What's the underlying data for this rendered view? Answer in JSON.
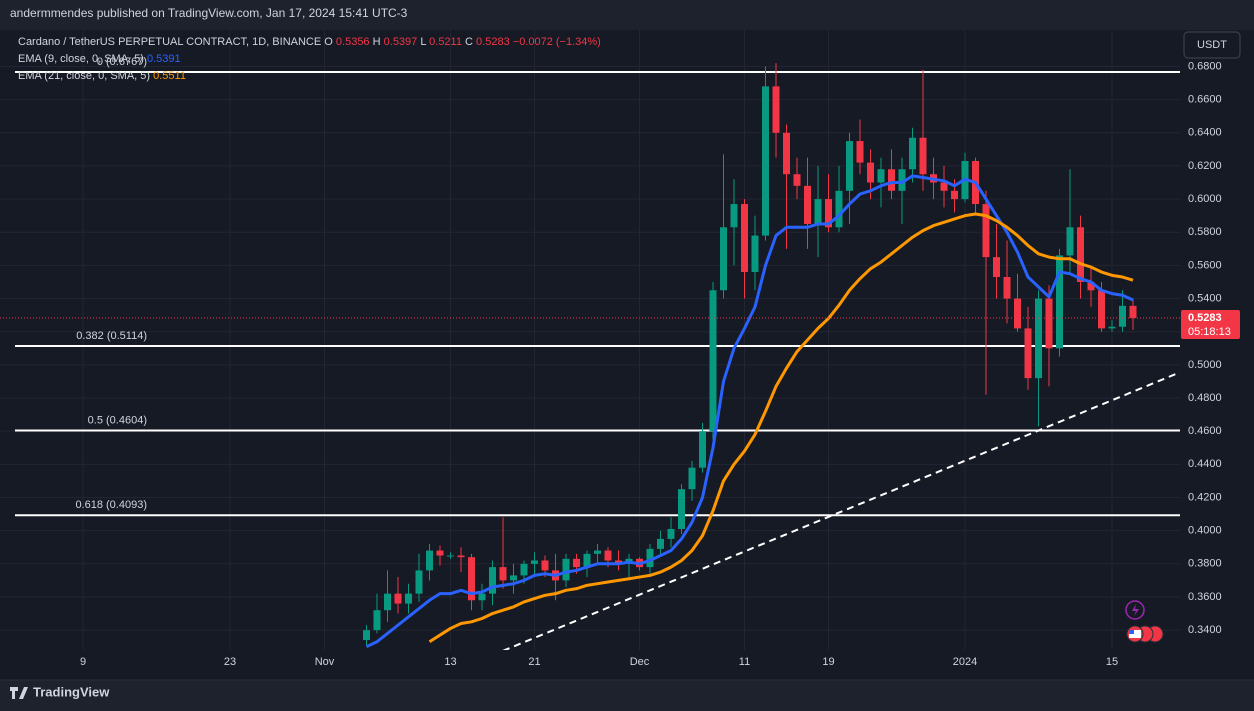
{
  "header": {
    "publisher": "andermmendes published on TradingView.com, Jan 17, 2024 15:41 UTC-3",
    "currency_button": "USDT",
    "countdown": "05:18:13",
    "brand": "TradingView"
  },
  "chart_data": {
    "type": "candlestick",
    "title": "Cardano / TetherUS PERPETUAL CONTRACT, 1D, BINANCE",
    "ohlc_labels": [
      "O",
      "H",
      "L",
      "C"
    ],
    "change": "−0.0072 (−1.34%)",
    "up_color": "#089981",
    "down_color": "#f23645",
    "candles": {
      "x": [
        "2023-11-05",
        "2023-11-06",
        "2023-11-07",
        "2023-11-08",
        "2023-11-09",
        "2023-11-10",
        "2023-11-11",
        "2023-11-12",
        "2023-11-13",
        "2023-11-14",
        "2023-11-15",
        "2023-11-16",
        "2023-11-17",
        "2023-11-18",
        "2023-11-19",
        "2023-11-20",
        "2023-11-21",
        "2023-11-22",
        "2023-11-23",
        "2023-11-24",
        "2023-11-25",
        "2023-11-26",
        "2023-11-27",
        "2023-11-28",
        "2023-11-29",
        "2023-11-30",
        "2023-12-01",
        "2023-12-02",
        "2023-12-03",
        "2023-12-04",
        "2023-12-05",
        "2023-12-06",
        "2023-12-07",
        "2023-12-08",
        "2023-12-09",
        "2023-12-10",
        "2023-12-11",
        "2023-12-12",
        "2023-12-13",
        "2023-12-14",
        "2023-12-15",
        "2023-12-16",
        "2023-12-17",
        "2023-12-18",
        "2023-12-19",
        "2023-12-20",
        "2023-12-21",
        "2023-12-22",
        "2023-12-23",
        "2023-12-24",
        "2023-12-25",
        "2023-12-26",
        "2023-12-27",
        "2023-12-28",
        "2023-12-29",
        "2023-12-30",
        "2023-12-31",
        "2024-01-01",
        "2024-01-02",
        "2024-01-03",
        "2024-01-04",
        "2024-01-05",
        "2024-01-06",
        "2024-01-07",
        "2024-01-08",
        "2024-01-09",
        "2024-01-10",
        "2024-01-11",
        "2024-01-12",
        "2024-01-13",
        "2024-01-14",
        "2024-01-15",
        "2024-01-16",
        "2024-01-17"
      ],
      "open": [
        0.334,
        0.34,
        0.352,
        0.362,
        0.356,
        0.362,
        0.376,
        0.388,
        0.385,
        0.385,
        0.384,
        0.358,
        0.362,
        0.378,
        0.37,
        0.373,
        0.38,
        0.382,
        0.376,
        0.37,
        0.383,
        0.378,
        0.386,
        0.388,
        0.382,
        0.38,
        0.383,
        0.378,
        0.389,
        0.395,
        0.401,
        0.425,
        0.438,
        0.46,
        0.545,
        0.583,
        0.597,
        0.556,
        0.578,
        0.668,
        0.64,
        0.615,
        0.608,
        0.585,
        0.6,
        0.583,
        0.605,
        0.635,
        0.622,
        0.61,
        0.618,
        0.605,
        0.618,
        0.637,
        0.615,
        0.61,
        0.605,
        0.6,
        0.623,
        0.597,
        0.565,
        0.553,
        0.54,
        0.522,
        0.492,
        0.54,
        0.51,
        0.566,
        0.583,
        0.55,
        0.545,
        0.522,
        0.523,
        0.5356
      ],
      "high": [
        0.343,
        0.362,
        0.376,
        0.372,
        0.368,
        0.386,
        0.392,
        0.391,
        0.387,
        0.39,
        0.386,
        0.368,
        0.382,
        0.408,
        0.38,
        0.382,
        0.387,
        0.385,
        0.386,
        0.386,
        0.386,
        0.388,
        0.392,
        0.39,
        0.388,
        0.386,
        0.384,
        0.392,
        0.4,
        0.408,
        0.428,
        0.442,
        0.465,
        0.55,
        0.627,
        0.612,
        0.6,
        0.59,
        0.68,
        0.682,
        0.645,
        0.625,
        0.625,
        0.62,
        0.615,
        0.62,
        0.64,
        0.648,
        0.63,
        0.625,
        0.63,
        0.625,
        0.643,
        0.678,
        0.625,
        0.62,
        0.612,
        0.628,
        0.625,
        0.605,
        0.585,
        0.575,
        0.555,
        0.535,
        0.545,
        0.548,
        0.57,
        0.618,
        0.59,
        0.56,
        0.55,
        0.527,
        0.545,
        0.5397
      ],
      "low": [
        0.33,
        0.338,
        0.345,
        0.35,
        0.35,
        0.357,
        0.37,
        0.379,
        0.383,
        0.375,
        0.352,
        0.352,
        0.355,
        0.365,
        0.362,
        0.368,
        0.372,
        0.372,
        0.358,
        0.366,
        0.374,
        0.372,
        0.38,
        0.378,
        0.376,
        0.372,
        0.376,
        0.374,
        0.385,
        0.39,
        0.398,
        0.418,
        0.435,
        0.455,
        0.54,
        0.56,
        0.54,
        0.545,
        0.575,
        0.625,
        0.57,
        0.6,
        0.57,
        0.565,
        0.58,
        0.58,
        0.585,
        0.615,
        0.6,
        0.595,
        0.6,
        0.585,
        0.61,
        0.605,
        0.6,
        0.595,
        0.592,
        0.598,
        0.59,
        0.482,
        0.54,
        0.525,
        0.52,
        0.485,
        0.463,
        0.487,
        0.505,
        0.555,
        0.54,
        0.535,
        0.52,
        0.52,
        0.52,
        0.5211
      ],
      "close": [
        0.34,
        0.352,
        0.362,
        0.356,
        0.362,
        0.376,
        0.388,
        0.385,
        0.385,
        0.384,
        0.358,
        0.362,
        0.378,
        0.37,
        0.373,
        0.38,
        0.382,
        0.376,
        0.37,
        0.383,
        0.378,
        0.386,
        0.388,
        0.382,
        0.38,
        0.383,
        0.378,
        0.389,
        0.395,
        0.401,
        0.425,
        0.438,
        0.46,
        0.545,
        0.583,
        0.597,
        0.556,
        0.578,
        0.668,
        0.64,
        0.615,
        0.608,
        0.585,
        0.6,
        0.583,
        0.605,
        0.635,
        0.622,
        0.61,
        0.618,
        0.605,
        0.618,
        0.637,
        0.615,
        0.61,
        0.605,
        0.6,
        0.623,
        0.597,
        0.565,
        0.553,
        0.54,
        0.522,
        0.492,
        0.54,
        0.51,
        0.566,
        0.583,
        0.55,
        0.545,
        0.522,
        0.523,
        0.5356,
        0.5283
      ]
    },
    "series": [
      {
        "name": "EMA (9, close, 0, SMA, 5)",
        "color": "#2962ff",
        "values": [
          0.33,
          0.333,
          0.338,
          0.343,
          0.348,
          0.353,
          0.358,
          0.362,
          0.362,
          0.364,
          0.362,
          0.363,
          0.366,
          0.367,
          0.368,
          0.37,
          0.373,
          0.374,
          0.373,
          0.375,
          0.376,
          0.378,
          0.38,
          0.38,
          0.38,
          0.381,
          0.38,
          0.382,
          0.385,
          0.388,
          0.395,
          0.405,
          0.42,
          0.45,
          0.49,
          0.51,
          0.522,
          0.535,
          0.56,
          0.578,
          0.583,
          0.583,
          0.583,
          0.585,
          0.585,
          0.59,
          0.597,
          0.603,
          0.605,
          0.608,
          0.61,
          0.61,
          0.614,
          0.613,
          0.612,
          0.611,
          0.608,
          0.612,
          0.61,
          0.6,
          0.59,
          0.58,
          0.568,
          0.553,
          0.547,
          0.541,
          0.556,
          0.555,
          0.552,
          0.55,
          0.545,
          0.543,
          0.542,
          0.5391
        ]
      },
      {
        "name": "EMA (21, close, 0, SMA, 5)",
        "color": "#ff9800",
        "values": [
          null,
          null,
          null,
          null,
          null,
          null,
          0.333,
          0.337,
          0.341,
          0.344,
          0.345,
          0.347,
          0.35,
          0.352,
          0.354,
          0.357,
          0.359,
          0.361,
          0.362,
          0.364,
          0.365,
          0.367,
          0.368,
          0.369,
          0.37,
          0.371,
          0.372,
          0.373,
          0.375,
          0.378,
          0.382,
          0.388,
          0.397,
          0.412,
          0.43,
          0.44,
          0.448,
          0.458,
          0.472,
          0.487,
          0.498,
          0.508,
          0.515,
          0.522,
          0.528,
          0.536,
          0.545,
          0.552,
          0.558,
          0.562,
          0.567,
          0.572,
          0.577,
          0.581,
          0.584,
          0.586,
          0.588,
          0.59,
          0.591,
          0.59,
          0.587,
          0.583,
          0.578,
          0.572,
          0.567,
          0.565,
          0.564,
          0.564,
          0.561,
          0.559,
          0.556,
          0.554,
          0.553,
          0.5511
        ]
      }
    ],
    "fib_levels": [
      {
        "label": "0 (0.6767)",
        "value": 0.6767
      },
      {
        "label": "0.382 (0.5114)",
        "value": 0.5114
      },
      {
        "label": "0.5 (0.4604)",
        "value": 0.4604
      },
      {
        "label": "0.618 (0.4093)",
        "value": 0.4093
      }
    ],
    "fib_color": "#ffffff",
    "trendline": {
      "x": [
        "2023-11-18",
        "2024-01-08"
      ],
      "y": [
        0.3275,
        0.4604
      ],
      "color": "#ffffff"
    },
    "xlim": [
      "2023-10-01",
      "2024-01-22"
    ],
    "xticks": [
      {
        "value": "2023-10-09",
        "label": "9"
      },
      {
        "value": "2023-10-23",
        "label": "23"
      },
      {
        "value": "2023-11-01",
        "label": "Nov"
      },
      {
        "value": "2023-11-13",
        "label": "13"
      },
      {
        "value": "2023-11-21",
        "label": "21"
      },
      {
        "value": "2023-12-01",
        "label": "Dec"
      },
      {
        "value": "2023-12-11",
        "label": "11"
      },
      {
        "value": "2023-12-19",
        "label": "19"
      },
      {
        "value": "2024-01-01",
        "label": "2024"
      },
      {
        "value": "2024-01-15",
        "label": "15"
      }
    ],
    "ylim": [
      0.328,
      0.702
    ],
    "yticks": [
      {
        "value": 0.34,
        "label": "0.3400"
      },
      {
        "value": 0.36,
        "label": "0.3600"
      },
      {
        "value": 0.38,
        "label": "0.3800"
      },
      {
        "value": 0.4,
        "label": "0.4000"
      },
      {
        "value": 0.42,
        "label": "0.4200"
      },
      {
        "value": 0.44,
        "label": "0.4400"
      },
      {
        "value": 0.46,
        "label": "0.4600"
      },
      {
        "value": 0.48,
        "label": "0.4800"
      },
      {
        "value": 0.5,
        "label": "0.5000"
      },
      {
        "value": 0.52,
        "label": "0.5200"
      },
      {
        "value": 0.54,
        "label": "0.5400"
      },
      {
        "value": 0.56,
        "label": "0.5600"
      },
      {
        "value": 0.58,
        "label": "0.5800"
      },
      {
        "value": 0.6,
        "label": "0.6000"
      },
      {
        "value": 0.62,
        "label": "0.6200"
      },
      {
        "value": 0.64,
        "label": "0.6400"
      },
      {
        "value": 0.66,
        "label": "0.6600"
      },
      {
        "value": 0.68,
        "label": "0.6800"
      }
    ],
    "grid": true
  }
}
